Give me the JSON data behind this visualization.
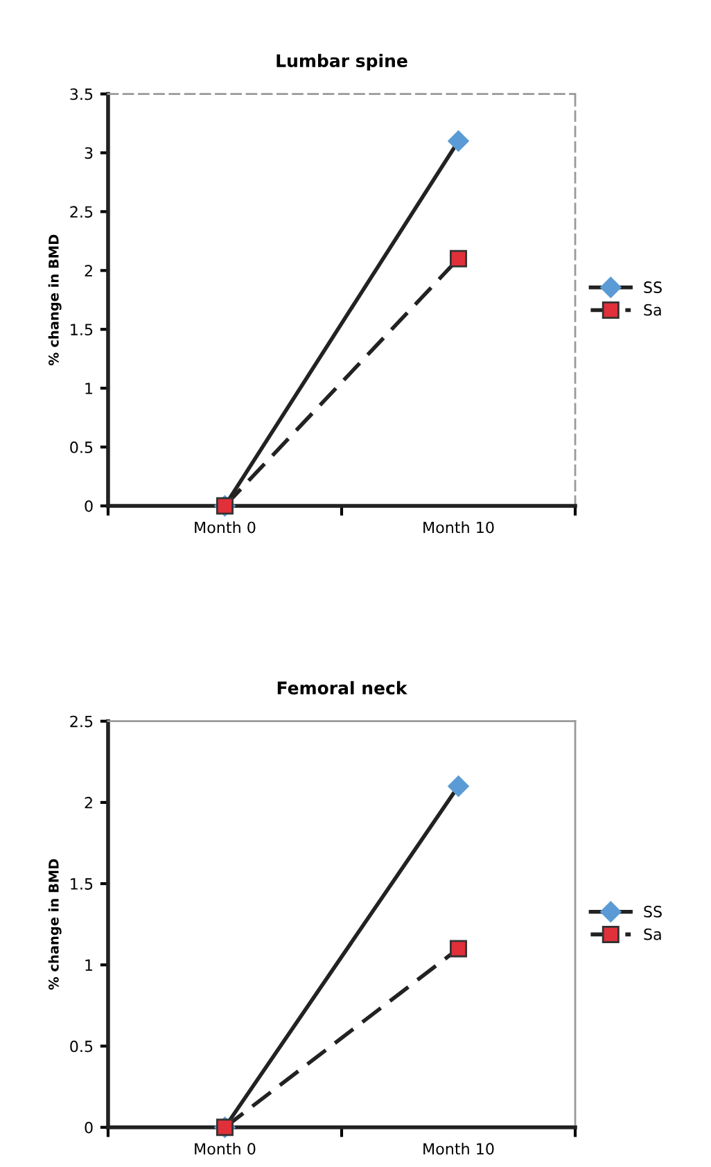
{
  "chart_data": [
    {
      "type": "line",
      "title": "Lumbar spine",
      "ylabel": "% change in BMD",
      "categories": [
        "Month 0",
        "Month 10"
      ],
      "ylim": [
        0,
        3.5
      ],
      "yticks": [
        0,
        0.5,
        1,
        1.5,
        2,
        2.5,
        3,
        3.5
      ],
      "legend": "right",
      "grid": false,
      "series": [
        {
          "name": "SS",
          "color": "#5b9bd5",
          "values": [
            0,
            3.1
          ],
          "marker": "diamond",
          "line_style": "solid"
        },
        {
          "name": "Sa",
          "color": "#e0303a",
          "values": [
            0,
            2.1
          ],
          "marker": "square",
          "line_style": "dashed"
        }
      ]
    },
    {
      "type": "line",
      "title": "Femoral neck",
      "ylabel": "% change in BMD",
      "categories": [
        "Month 0",
        "Month 10"
      ],
      "ylim": [
        0,
        2.5
      ],
      "yticks": [
        0,
        0.5,
        1,
        1.5,
        2,
        2.5
      ],
      "legend": "right",
      "grid": false,
      "series": [
        {
          "name": "SS",
          "color": "#5b9bd5",
          "values": [
            0,
            2.1
          ],
          "marker": "diamond",
          "line_style": "solid"
        },
        {
          "name": "Sa",
          "color": "#e0303a",
          "values": [
            0,
            1.1
          ],
          "marker": "square",
          "line_style": "dashed"
        }
      ]
    }
  ]
}
